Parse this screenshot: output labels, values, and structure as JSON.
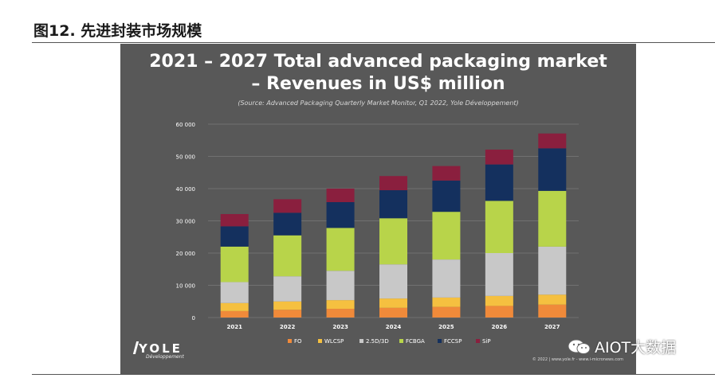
{
  "figure_label": "图12. 先进封装市场规模",
  "chart_data": {
    "type": "bar",
    "stacked": true,
    "title": "2021 – 2027 Total advanced packaging market – Revenues in US$ million",
    "title_line1": "2021 – 2027 Total advanced packaging market",
    "title_line2": "– Revenues in US$ million",
    "subtitle": "(Source: Advanced Packaging Quarterly Market Monitor, Q1 2022, Yole Développement)",
    "xlabel": "",
    "ylabel": "",
    "ylim": [
      0,
      60000
    ],
    "yticks": [
      "0",
      "10 000",
      "20 000",
      "30 000",
      "40 000",
      "50 000",
      "60 000"
    ],
    "grid": true,
    "legend_position": "bottom",
    "categories": [
      "2021",
      "2022",
      "2023",
      "2024",
      "2025",
      "2026",
      "2027"
    ],
    "series": [
      {
        "name": "FO",
        "color": "#F08A3A",
        "values": [
          2000,
          2400,
          2700,
          3000,
          3300,
          3600,
          4000
        ]
      },
      {
        "name": "WLCSP",
        "color": "#F5C040",
        "values": [
          2500,
          2600,
          2700,
          2900,
          2900,
          3100,
          3100
        ]
      },
      {
        "name": "2.5D/3D",
        "color": "#C8C8C8",
        "values": [
          6500,
          7800,
          9100,
          10600,
          11800,
          13300,
          14900
        ]
      },
      {
        "name": "FCBGA",
        "color": "#B8D44A",
        "values": [
          11000,
          12700,
          13300,
          14300,
          14800,
          16200,
          17300
        ]
      },
      {
        "name": "FCCSP",
        "color": "#14305E",
        "values": [
          6300,
          7000,
          8000,
          8700,
          9700,
          11300,
          13200
        ]
      },
      {
        "name": "SiP",
        "color": "#8A1F3E",
        "values": [
          3800,
          4200,
          4200,
          4400,
          4500,
          4600,
          4600
        ]
      }
    ]
  },
  "logo": {
    "brand": "YOLE",
    "tagline": "Développement"
  },
  "copyright": "© 2022 | www.yole.fr - www.i-micronews.com",
  "watermark": "AIOT大数据"
}
